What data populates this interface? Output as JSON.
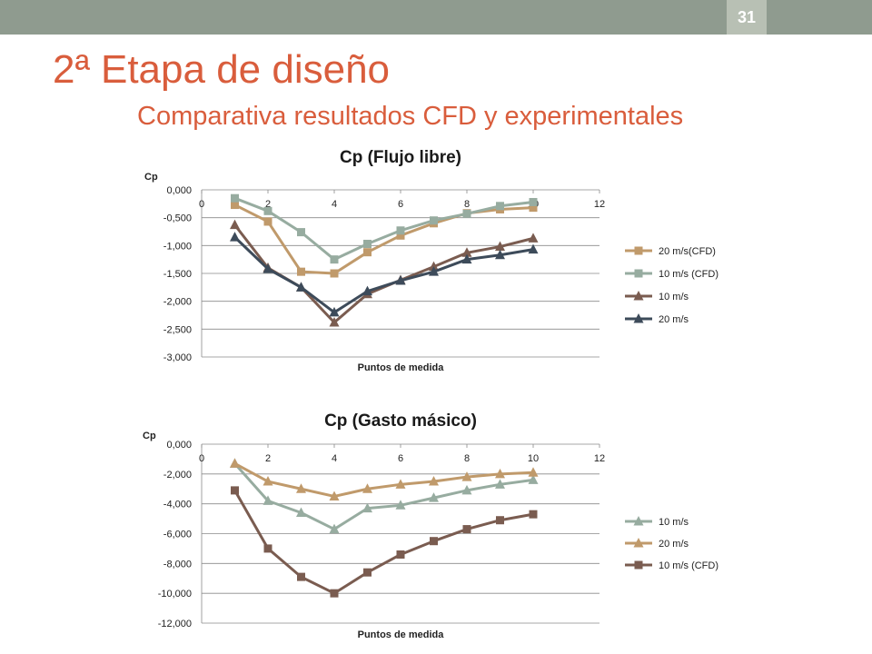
{
  "header": {
    "page_number": "31"
  },
  "slide": {
    "title": "2ª Etapa de diseño",
    "subtitle": "Comparativa resultados CFD y experimentales"
  },
  "chart_data": [
    {
      "type": "line",
      "title": "Cp (Flujo libre)",
      "xlabel": "Puntos de medida",
      "ylabel": "Cp",
      "xlim": [
        0,
        12
      ],
      "ylim": [
        -3.0,
        0.0
      ],
      "x_ticks": [
        "0",
        "2",
        "4",
        "6",
        "8",
        "10",
        "12"
      ],
      "x_tick_values": [
        0,
        2,
        4,
        6,
        8,
        10,
        12
      ],
      "y_ticks": [
        "0,000",
        "-0,500",
        "-1,000",
        "-1,500",
        "-2,000",
        "-2,500",
        "-3,000"
      ],
      "y_tick_values": [
        0,
        -0.5,
        -1.0,
        -1.5,
        -2.0,
        -2.5,
        -3.0
      ],
      "x_axis_position": "top",
      "grid": "horizontal",
      "legend_position": "right",
      "x": [
        1,
        2,
        3,
        4,
        5,
        6,
        7,
        8,
        9,
        10
      ],
      "series": [
        {
          "name": "20 m/s(CFD)",
          "color": "#c09a6b",
          "marker": "square",
          "values": [
            -0.27,
            -0.57,
            -1.47,
            -1.5,
            -1.12,
            -0.82,
            -0.6,
            -0.42,
            -0.35,
            -0.32
          ]
        },
        {
          "name": "10 m/s (CFD)",
          "color": "#97aca0",
          "marker": "square",
          "values": [
            -0.15,
            -0.38,
            -0.76,
            -1.25,
            -0.97,
            -0.73,
            -0.55,
            -0.43,
            -0.29,
            -0.22
          ]
        },
        {
          "name": "10 m/s",
          "color": "#7a5c50",
          "marker": "triangle",
          "values": [
            -0.63,
            -1.4,
            -1.75,
            -2.38,
            -1.87,
            -1.62,
            -1.38,
            -1.13,
            -1.02,
            -0.87
          ]
        },
        {
          "name": "20 m/s",
          "color": "#3d4b5a",
          "marker": "triangle",
          "values": [
            -0.85,
            -1.42,
            -1.75,
            -2.2,
            -1.82,
            -1.63,
            -1.47,
            -1.25,
            -1.17,
            -1.07
          ]
        }
      ]
    },
    {
      "type": "line",
      "title": "Cp (Gasto másico)",
      "xlabel": "Puntos de medida",
      "ylabel": "Cp",
      "xlim": [
        0,
        12
      ],
      "ylim": [
        -12.0,
        0.0
      ],
      "x_ticks": [
        "0",
        "2",
        "4",
        "6",
        "8",
        "10",
        "12"
      ],
      "x_tick_values": [
        0,
        2,
        4,
        6,
        8,
        10,
        12
      ],
      "y_ticks": [
        "0,000",
        "-2,000",
        "-4,000",
        "-6,000",
        "-8,000",
        "-10,000",
        "-12,000"
      ],
      "y_tick_values": [
        0,
        -2,
        -4,
        -6,
        -8,
        -10,
        -12
      ],
      "x_axis_position": "top",
      "grid": "horizontal",
      "legend_position": "right",
      "x": [
        1,
        2,
        3,
        4,
        5,
        6,
        7,
        8,
        9,
        10
      ],
      "series": [
        {
          "name": "10 m/s",
          "color": "#97aca0",
          "marker": "triangle",
          "values": [
            -1.3,
            -3.8,
            -4.6,
            -5.7,
            -4.3,
            -4.1,
            -3.6,
            -3.1,
            -2.7,
            -2.4
          ]
        },
        {
          "name": "20 m/s",
          "color": "#c09a6b",
          "marker": "triangle",
          "values": [
            -1.3,
            -2.5,
            -3.0,
            -3.5,
            -3.0,
            -2.7,
            -2.5,
            -2.2,
            -2.0,
            -1.9
          ]
        },
        {
          "name": "10 m/s (CFD)",
          "color": "#7a5c50",
          "marker": "square",
          "values": [
            -3.1,
            -7.0,
            -8.9,
            -10.0,
            -8.6,
            -7.4,
            -6.5,
            -5.7,
            -5.1,
            -4.7
          ]
        }
      ]
    }
  ]
}
